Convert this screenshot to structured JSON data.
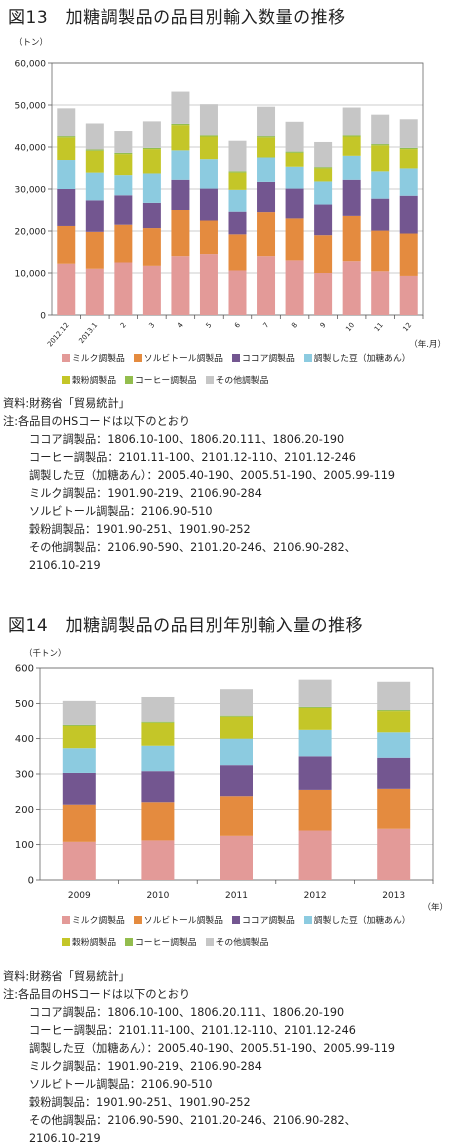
{
  "fig13": {
    "title": "図13　加糖調製品の品目別輸入数量の推移",
    "unit": "（トン）",
    "xunit": "（年.月）",
    "legend_row1": [
      "ミルク調製品",
      "ソルビトール調製品",
      "ココア調製品",
      "調製した豆（加糖あん）"
    ],
    "legend_row2": [
      "穀粉調製品",
      "コーヒー調製品",
      "その他調製品"
    ]
  },
  "fig14": {
    "title": "図14　加糖調製品の品目別年別輸入量の推移",
    "unit": "（千トン）",
    "xunit": "（年）",
    "legend_row1": [
      "ミルク調製品",
      "ソルビトール調製品",
      "ココア調製品",
      "調製した豆（加糖あん）"
    ],
    "legend_row2": [
      "穀粉調製品",
      "コーヒー調製品",
      "その他調製品"
    ]
  },
  "notes": {
    "source": "資料:財務省「貿易統計」",
    "note_head": "注:各品目のHSコードは以下のとおり",
    "lines": [
      "ココア調製品：1806.10-100、1806.20.111、1806.20-190",
      "コーヒー調製品：2101.11-100、2101.12-110、2101.12-246",
      "調製した豆（加糖あん）：2005.40-190、2005.51-190、2005.99-119",
      "ミルク調製品：1901.90-219、2106.90-284",
      "ソルビトール調製品：2106.90-510",
      "穀粉調製品：1901.90-251、1901.90-252",
      "その他調製品：2106.90-590、2101.20-246、2106.90-282、",
      "2106.10-219"
    ]
  },
  "colors": {
    "milk": "#e39a98",
    "sorbitol": "#e48b3f",
    "cocoa": "#735690",
    "beans": "#8ccbe0",
    "flour": "#c4c628",
    "coffee": "#93bd4e",
    "other": "#c6c6c6"
  },
  "chart_data": [
    {
      "type": "bar",
      "stacked": true,
      "title": "図13　加糖調製品の品目別輸入数量の推移",
      "ylabel": "（トン）",
      "xlabel": "（年.月）",
      "ylim": [
        0,
        60000
      ],
      "yticks": [
        "0",
        "10,000",
        "20,000",
        "30,000",
        "40,000",
        "50,000",
        "60,000"
      ],
      "categories": [
        "2012.12",
        "2013.1",
        "2",
        "3",
        "4",
        "5",
        "6",
        "7",
        "8",
        "9",
        "10",
        "11",
        "12"
      ],
      "series": [
        {
          "name": "ミルク調製品",
          "values": [
            12200,
            11000,
            12500,
            11700,
            14000,
            14500,
            10600,
            14000,
            13000,
            10000,
            12800,
            10400,
            9300
          ]
        },
        {
          "name": "ソルビトール調製品",
          "values": [
            9000,
            8800,
            9000,
            9000,
            11000,
            8000,
            8600,
            10500,
            10000,
            9000,
            10800,
            9700,
            10100
          ]
        },
        {
          "name": "ココア調製品",
          "values": [
            8800,
            7500,
            7000,
            6000,
            7200,
            7600,
            5400,
            7200,
            7100,
            7300,
            8600,
            7600,
            9000
          ]
        },
        {
          "name": "調製した豆（加糖あん）",
          "values": [
            6900,
            6600,
            4800,
            7000,
            7000,
            7000,
            5200,
            5800,
            5200,
            5500,
            5700,
            6500,
            6500
          ]
        },
        {
          "name": "穀粉調製品",
          "values": [
            5400,
            5200,
            5000,
            5800,
            6000,
            5400,
            4100,
            4800,
            3300,
            3100,
            4600,
            6200,
            4600
          ]
        },
        {
          "name": "コーヒー調製品",
          "values": [
            300,
            300,
            300,
            300,
            300,
            300,
            300,
            300,
            300,
            300,
            300,
            300,
            300
          ]
        },
        {
          "name": "その他調製品",
          "values": [
            6600,
            6200,
            5200,
            6300,
            7700,
            7400,
            7300,
            7000,
            7100,
            6000,
            6600,
            7000,
            6800
          ]
        }
      ]
    },
    {
      "type": "bar",
      "stacked": true,
      "title": "図14　加糖調製品の品目別年別輸入量の推移",
      "ylabel": "（千トン）",
      "xlabel": "（年）",
      "ylim": [
        0,
        600
      ],
      "yticks": [
        "0",
        "100",
        "200",
        "300",
        "400",
        "500",
        "600"
      ],
      "categories": [
        "2009",
        "2010",
        "2011",
        "2012",
        "2013"
      ],
      "series": [
        {
          "name": "ミルク調製品",
          "values": [
            108,
            112,
            125,
            140,
            145
          ]
        },
        {
          "name": "ソルビトール調製品",
          "values": [
            105,
            108,
            112,
            115,
            113
          ]
        },
        {
          "name": "ココア調製品",
          "values": [
            90,
            88,
            88,
            95,
            88
          ]
        },
        {
          "name": "調製した豆（加糖あん）",
          "values": [
            70,
            72,
            75,
            75,
            72
          ]
        },
        {
          "name": "穀粉調製品",
          "values": [
            63,
            65,
            62,
            62,
            60
          ]
        },
        {
          "name": "コーヒー調製品",
          "values": [
            3,
            3,
            3,
            3,
            3
          ]
        },
        {
          "name": "その他調製品",
          "values": [
            68,
            70,
            75,
            77,
            80
          ]
        }
      ]
    }
  ]
}
